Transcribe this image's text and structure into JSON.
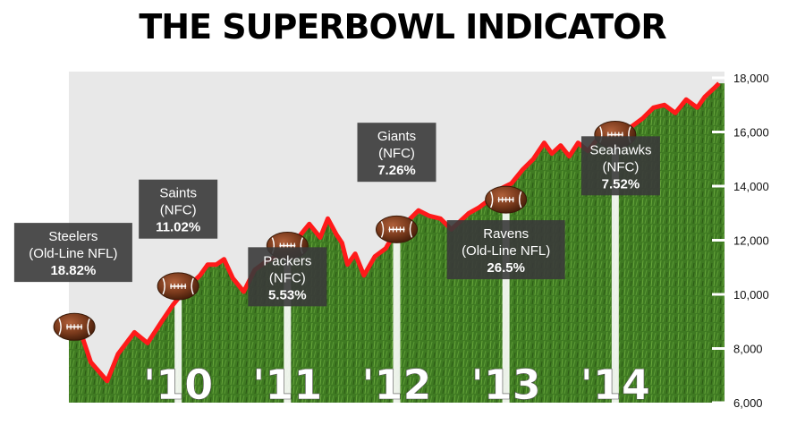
{
  "colors": {
    "sky": "#e8e8e8",
    "grass": "#3f7a22",
    "grass_dark": "#2c5a15",
    "line": "#ff1a1a",
    "label_box": "#3a3a3a",
    "football": "#7a3a1c"
  },
  "chart_data": {
    "type": "line",
    "title": "THE SUPERBOWL INDICATOR",
    "ylim": [
      6000,
      18000
    ],
    "yticks": [
      "6,000",
      "8,000",
      "10,000",
      "12,000",
      "14,000",
      "16,000",
      "18,000"
    ],
    "ytick_values": [
      6000,
      8000,
      10000,
      12000,
      14000,
      16000,
      18000
    ],
    "xlim": [
      2009.0,
      2015.0
    ],
    "year_labels": [
      {
        "label": "'10",
        "x": 2010.0
      },
      {
        "label": "'11",
        "x": 2011.0
      },
      {
        "label": "'12",
        "x": 2012.0
      },
      {
        "label": "'13",
        "x": 2013.0
      },
      {
        "label": "'14",
        "x": 2014.0
      }
    ],
    "series": [
      {
        "x": [
          2009.1,
          2009.2,
          2009.35,
          2009.45,
          2009.6,
          2009.72,
          2009.85,
          2009.95,
          2010.05,
          2010.12,
          2010.2,
          2010.27,
          2010.35,
          2010.42,
          2010.5,
          2010.6,
          2010.7,
          2010.8,
          2010.9,
          2011.0,
          2011.1,
          2011.2,
          2011.3,
          2011.37,
          2011.45,
          2011.5,
          2011.55,
          2011.62,
          2011.7,
          2011.8,
          2011.9,
          2012.0,
          2012.1,
          2012.2,
          2012.3,
          2012.4,
          2012.5,
          2012.58,
          2012.66,
          2012.75,
          2012.85,
          2012.95,
          2013.05,
          2013.15,
          2013.25,
          2013.35,
          2013.42,
          2013.5,
          2013.58,
          2013.66,
          2013.75,
          2013.85,
          2013.95,
          2014.05,
          2014.15,
          2014.25,
          2014.35,
          2014.45,
          2014.55,
          2014.65,
          2014.75,
          2014.82,
          2014.9,
          2014.95
        ],
        "values": [
          8700,
          7500,
          6800,
          7800,
          8600,
          8200,
          9000,
          9600,
          10100,
          10400,
          10700,
          11100,
          11100,
          11300,
          10600,
          10100,
          10900,
          11200,
          11400,
          11700,
          12100,
          12600,
          12100,
          12800,
          12200,
          11900,
          11100,
          11500,
          10700,
          11400,
          11700,
          12400,
          12700,
          13100,
          12900,
          12800,
          12400,
          12700,
          13000,
          13200,
          13500,
          13900,
          14100,
          14600,
          15000,
          15600,
          15200,
          15500,
          15100,
          15600,
          15300,
          15800,
          16100,
          15800,
          16200,
          16500,
          16900,
          17000,
          16700,
          17200,
          16900,
          17300,
          17600,
          17800
        ]
      }
    ],
    "annotations": [
      {
        "team": "Steelers",
        "conference": "(Old-Line NFL)",
        "return": "18.82%",
        "x": 2009.05,
        "y": 8800,
        "box_x": 2009.04,
        "box_y": 11550
      },
      {
        "team": "Saints",
        "conference": "(NFC)",
        "return": "11.02%",
        "x": 2010.0,
        "y": 10300,
        "box_x": 2010.0,
        "box_y": 13150
      },
      {
        "team": "Packers",
        "conference": "(NFC)",
        "return": "5.53%",
        "x": 2011.0,
        "y": 11800,
        "box_x": 2011.0,
        "box_y": 10650
      },
      {
        "team": "Giants",
        "conference": "(NFC)",
        "return": "7.26%",
        "x": 2012.0,
        "y": 12400,
        "box_x": 2012.0,
        "box_y": 15250
      },
      {
        "team": "Ravens",
        "conference": "(Old-Line NFL)",
        "return": "26.5%",
        "x": 2013.0,
        "y": 13500,
        "box_x": 2013.0,
        "box_y": 11650
      },
      {
        "team": "Seahawks",
        "conference": "(NFC)",
        "return": "7.52%",
        "x": 2014.0,
        "y": 15900,
        "box_x": 2014.05,
        "box_y": 14750
      }
    ]
  }
}
